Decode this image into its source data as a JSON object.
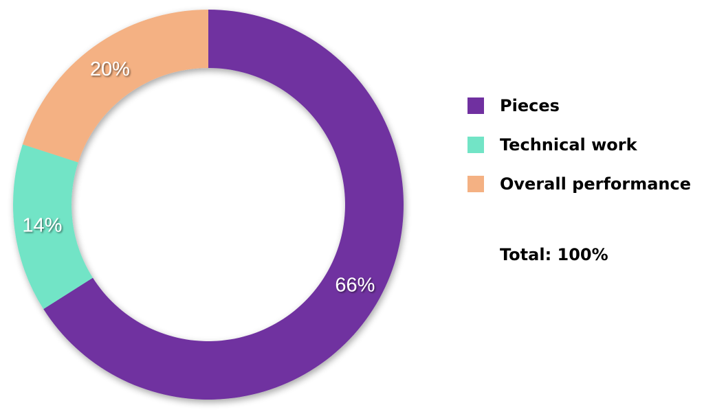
{
  "chart_data": {
    "type": "pie",
    "variant": "donut",
    "categories": [
      "Pieces",
      "Technical work",
      "Overall performance"
    ],
    "values": [
      66,
      14,
      20
    ],
    "data_labels": [
      "66%",
      "14%",
      "20%"
    ],
    "colors": [
      "#7030a0",
      "#72e4c6",
      "#f4b183"
    ],
    "legend": {
      "placement": "right",
      "entries": [
        "Pieces",
        "Technical work",
        "Overall performance"
      ]
    },
    "total_label": "Total: 100%"
  }
}
